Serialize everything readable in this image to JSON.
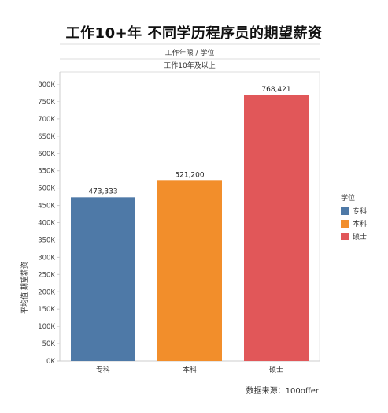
{
  "chart_data": {
    "type": "bar",
    "title": "工作10+年  不同学历程序员的期望薪资",
    "header_label": "工作年限 / 学位",
    "header_sub": "工作10年及以上",
    "ylabel": "平均值 期望薪资",
    "categories": [
      "专科",
      "本科",
      "硕士"
    ],
    "values": [
      473333,
      521200,
      768421
    ],
    "value_labels": [
      "473,333",
      "521,200",
      "768,421"
    ],
    "colors": [
      "#4e79a7",
      "#f28e2b",
      "#e15759"
    ],
    "ylim": [
      0,
      800000
    ],
    "yticks": [
      {
        "value": 0,
        "label": "0K"
      },
      {
        "value": 50000,
        "label": "50K"
      },
      {
        "value": 100000,
        "label": "100K"
      },
      {
        "value": 150000,
        "label": "150K"
      },
      {
        "value": 200000,
        "label": "200K"
      },
      {
        "value": 250000,
        "label": "250K"
      },
      {
        "value": 300000,
        "label": "300K"
      },
      {
        "value": 350000,
        "label": "350K"
      },
      {
        "value": 400000,
        "label": "400K"
      },
      {
        "value": 450000,
        "label": "450K"
      },
      {
        "value": 500000,
        "label": "500K"
      },
      {
        "value": 550000,
        "label": "550K"
      },
      {
        "value": 600000,
        "label": "600K"
      },
      {
        "value": 650000,
        "label": "650K"
      },
      {
        "value": 700000,
        "label": "700K"
      },
      {
        "value": 750000,
        "label": "750K"
      },
      {
        "value": 800000,
        "label": "800K"
      }
    ],
    "grid": false,
    "legend": {
      "title": "学位",
      "placement": "right",
      "items": [
        {
          "label": "专科",
          "color": "#4e79a7"
        },
        {
          "label": "本科",
          "color": "#f28e2b"
        },
        {
          "label": "硕士",
          "color": "#e15759"
        }
      ]
    }
  },
  "source": "数据来源：100offer"
}
